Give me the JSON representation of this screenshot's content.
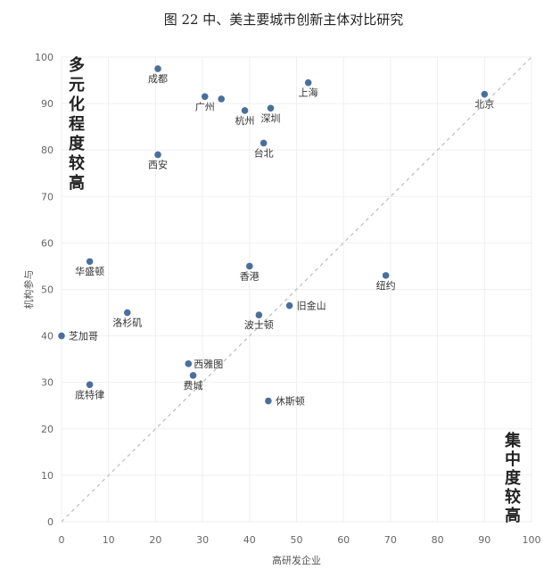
{
  "chart_data": {
    "type": "scatter",
    "title": "图 22  中、美主要城市创新主体对比研究",
    "xlabel": "高研发企业",
    "ylabel": "机构参与",
    "xlim": [
      0,
      100
    ],
    "ylim": [
      0,
      100
    ],
    "xticks": [
      0,
      10,
      20,
      30,
      40,
      50,
      60,
      70,
      80,
      90,
      100
    ],
    "yticks": [
      0,
      10,
      20,
      30,
      40,
      50,
      60,
      70,
      80,
      90,
      100
    ],
    "grid": true,
    "reference_line": "y = x",
    "annotations": [
      {
        "text": "多元化程度较高",
        "position": "top-left"
      },
      {
        "text": "集中度较高",
        "position": "bottom-right"
      }
    ],
    "points": [
      {
        "label": "北京",
        "x": 90,
        "y": 92
      },
      {
        "label": "上海",
        "x": 52.5,
        "y": 94.5
      },
      {
        "label": "成都",
        "x": 20.5,
        "y": 97.5
      },
      {
        "label": "广州",
        "x": 30.5,
        "y": 91.5
      },
      {
        "label": "",
        "x": 34,
        "y": 91
      },
      {
        "label": "杭州",
        "x": 39,
        "y": 88.5
      },
      {
        "label": "深圳",
        "x": 44.5,
        "y": 89
      },
      {
        "label": "台北",
        "x": 43,
        "y": 81.5
      },
      {
        "label": "西安",
        "x": 20.5,
        "y": 79
      },
      {
        "label": "华盛顿",
        "x": 6,
        "y": 56
      },
      {
        "label": "香港",
        "x": 40,
        "y": 55
      },
      {
        "label": "纽约",
        "x": 69,
        "y": 53
      },
      {
        "label": "旧金山",
        "x": 48.5,
        "y": 46.5
      },
      {
        "label": "洛杉矶",
        "x": 14,
        "y": 45
      },
      {
        "label": "波士顿",
        "x": 42,
        "y": 44.5
      },
      {
        "label": "芝加哥",
        "x": 0,
        "y": 40
      },
      {
        "label": "西雅图",
        "x": 27,
        "y": 34
      },
      {
        "label": "费城",
        "x": 28,
        "y": 31.5
      },
      {
        "label": "底特律",
        "x": 6,
        "y": 29.5
      },
      {
        "label": "休斯顿",
        "x": 44,
        "y": 26
      }
    ]
  }
}
